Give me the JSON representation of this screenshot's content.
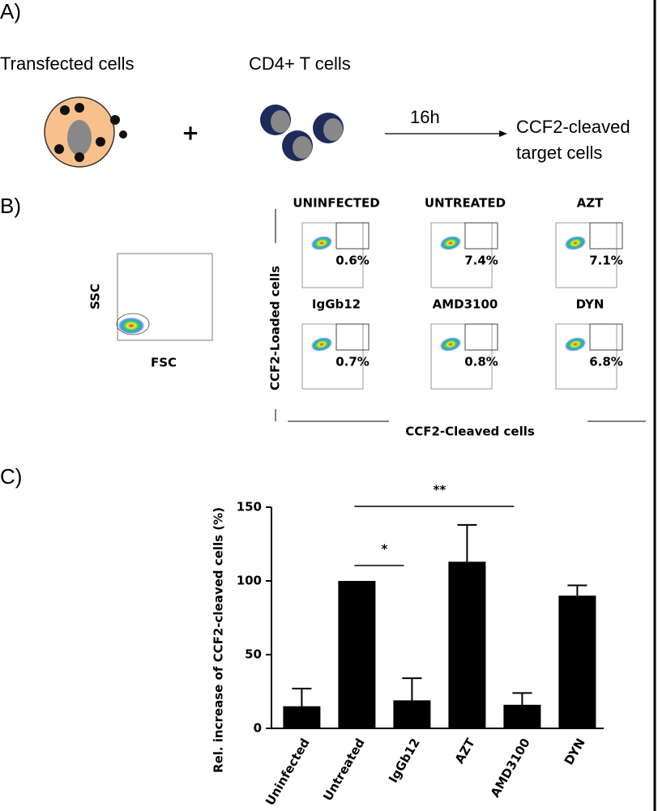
{
  "panel_a": {
    "label": "A)",
    "left_title": "Transfected cells",
    "right_title": "CD4+ T cells",
    "plus": "+",
    "time": "16h",
    "result": [
      "CCF2-cleaved",
      "target cells"
    ]
  },
  "panel_b": {
    "label": "B)",
    "scatter_y": "SSC",
    "scatter_x": "FSC",
    "y_title": "CCF2-Loaded cells",
    "x_title": "CCF2-Cleaved cells",
    "plots": [
      {
        "title": "UNINFECTED",
        "percent": "0.6%"
      },
      {
        "title": "UNTREATED",
        "percent": "7.4%"
      },
      {
        "title": "AZT",
        "percent": "7.1%"
      },
      {
        "title": "IgGb12",
        "percent": "0.7%"
      },
      {
        "title": "AMD3100",
        "percent": "0.8%"
      },
      {
        "title": "DYN",
        "percent": "6.8%"
      }
    ]
  },
  "chart_data": {
    "type": "bar",
    "label": "C)",
    "y_label": "Rel. increase of CCF2-cleaved cells (%)",
    "categories": [
      "Uninfected",
      "Untreated",
      "IgGb12",
      "AZT",
      "AMD3100",
      "DYN"
    ],
    "values": [
      15,
      100,
      19,
      113,
      16,
      90
    ],
    "errors": [
      12,
      null,
      15,
      25,
      8,
      7
    ],
    "color": "#000000",
    "ylim": [
      0,
      150
    ],
    "yticks": [
      0,
      50,
      100,
      150
    ],
    "significance": [
      "*",
      "**"
    ]
  }
}
